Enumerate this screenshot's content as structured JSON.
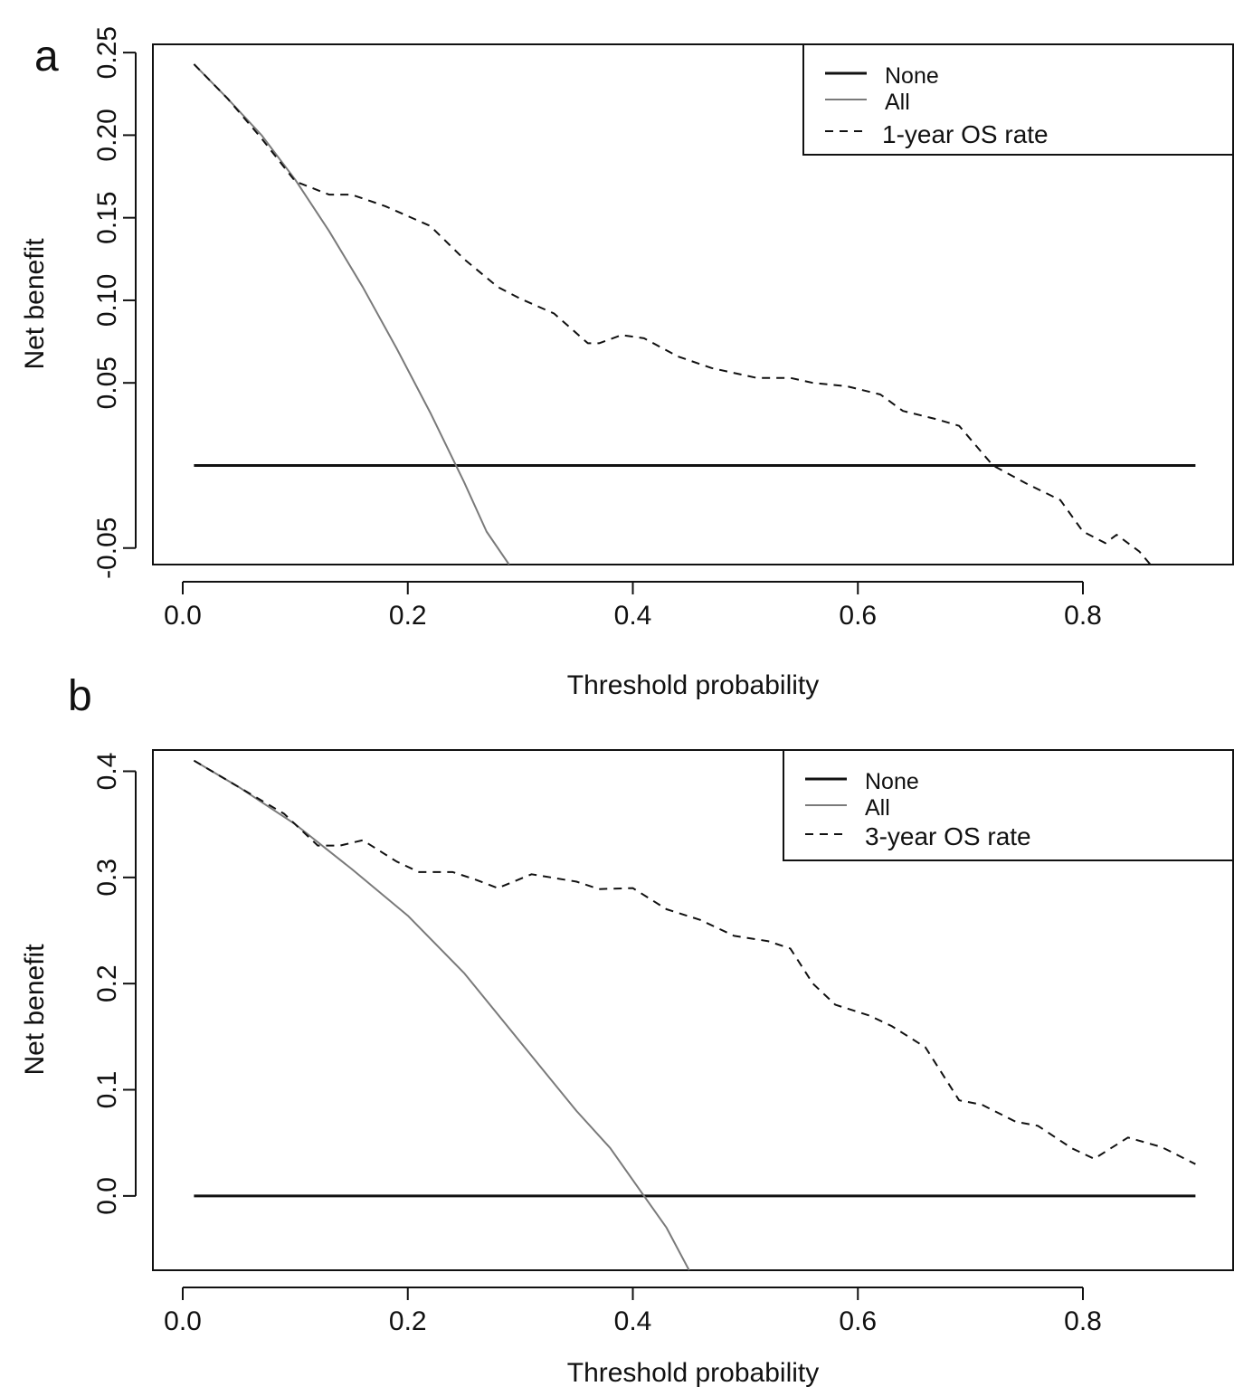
{
  "chart_data": [
    {
      "panel": "a",
      "type": "line",
      "xlabel": "Threshold probability",
      "ylabel": "Net benefit",
      "xlim": [
        0.0,
        0.9
      ],
      "ylim": [
        -0.06,
        0.255
      ],
      "xticks": [
        "0.0",
        "0.2",
        "0.4",
        "0.6",
        "0.8"
      ],
      "yticks": [
        "-0.05",
        "0.05",
        "0.10",
        "0.15",
        "0.20",
        "0.25"
      ],
      "legend_position": "top-right",
      "series": [
        {
          "name": "None",
          "style": "solid",
          "color": "#111111",
          "points": [
            [
              0.01,
              0.0
            ],
            [
              0.9,
              0.0
            ]
          ]
        },
        {
          "name": "All",
          "style": "solid",
          "color": "#7a7a7a",
          "points": [
            [
              0.01,
              0.243
            ],
            [
              0.04,
              0.222
            ],
            [
              0.07,
              0.2
            ],
            [
              0.1,
              0.173
            ],
            [
              0.13,
              0.142
            ],
            [
              0.16,
              0.108
            ],
            [
              0.19,
              0.071
            ],
            [
              0.22,
              0.032
            ],
            [
              0.25,
              -0.01
            ],
            [
              0.27,
              -0.04
            ],
            [
              0.29,
              -0.06
            ]
          ]
        },
        {
          "name": "1-year OS rate",
          "style": "dashed",
          "color": "#111111",
          "points": [
            [
              0.01,
              0.243
            ],
            [
              0.04,
              0.222
            ],
            [
              0.07,
              0.198
            ],
            [
              0.1,
              0.172
            ],
            [
              0.13,
              0.164
            ],
            [
              0.15,
              0.164
            ],
            [
              0.18,
              0.157
            ],
            [
              0.22,
              0.145
            ],
            [
              0.25,
              0.125
            ],
            [
              0.28,
              0.108
            ],
            [
              0.3,
              0.101
            ],
            [
              0.33,
              0.092
            ],
            [
              0.36,
              0.074
            ],
            [
              0.37,
              0.074
            ],
            [
              0.39,
              0.079
            ],
            [
              0.41,
              0.077
            ],
            [
              0.44,
              0.066
            ],
            [
              0.47,
              0.059
            ],
            [
              0.51,
              0.053
            ],
            [
              0.54,
              0.053
            ],
            [
              0.56,
              0.05
            ],
            [
              0.59,
              0.048
            ],
            [
              0.62,
              0.043
            ],
            [
              0.64,
              0.033
            ],
            [
              0.67,
              0.028
            ],
            [
              0.69,
              0.024
            ],
            [
              0.72,
              0.0
            ],
            [
              0.75,
              -0.011
            ],
            [
              0.78,
              -0.021
            ],
            [
              0.8,
              -0.04
            ],
            [
              0.82,
              -0.047
            ],
            [
              0.83,
              -0.042
            ],
            [
              0.85,
              -0.052
            ],
            [
              0.86,
              -0.06
            ]
          ]
        }
      ]
    },
    {
      "panel": "b",
      "type": "line",
      "xlabel": "Threshold probability",
      "ylabel": "Net benefit",
      "xlim": [
        0.0,
        0.9
      ],
      "ylim": [
        -0.07,
        0.42
      ],
      "xticks": [
        "0.0",
        "0.2",
        "0.4",
        "0.6",
        "0.8"
      ],
      "yticks": [
        "0.0",
        "0.1",
        "0.2",
        "0.3",
        "0.4"
      ],
      "legend_position": "top-right",
      "series": [
        {
          "name": "None",
          "style": "solid",
          "color": "#111111",
          "points": [
            [
              0.01,
              0.0
            ],
            [
              0.9,
              0.0
            ]
          ]
        },
        {
          "name": "All",
          "style": "solid",
          "color": "#7a7a7a",
          "points": [
            [
              0.01,
              0.41
            ],
            [
              0.05,
              0.385
            ],
            [
              0.1,
              0.35
            ],
            [
              0.15,
              0.308
            ],
            [
              0.2,
              0.264
            ],
            [
              0.25,
              0.21
            ],
            [
              0.3,
              0.145
            ],
            [
              0.35,
              0.08
            ],
            [
              0.38,
              0.045
            ],
            [
              0.41,
              0.0
            ],
            [
              0.43,
              -0.03
            ],
            [
              0.45,
              -0.07
            ]
          ]
        },
        {
          "name": "3-year OS rate",
          "style": "dashed",
          "color": "#111111",
          "points": [
            [
              0.01,
              0.41
            ],
            [
              0.05,
              0.385
            ],
            [
              0.09,
              0.36
            ],
            [
              0.12,
              0.33
            ],
            [
              0.14,
              0.33
            ],
            [
              0.16,
              0.335
            ],
            [
              0.19,
              0.315
            ],
            [
              0.21,
              0.305
            ],
            [
              0.24,
              0.305
            ],
            [
              0.26,
              0.298
            ],
            [
              0.28,
              0.29
            ],
            [
              0.31,
              0.303
            ],
            [
              0.35,
              0.296
            ],
            [
              0.37,
              0.289
            ],
            [
              0.4,
              0.29
            ],
            [
              0.43,
              0.27
            ],
            [
              0.46,
              0.26
            ],
            [
              0.49,
              0.245
            ],
            [
              0.52,
              0.24
            ],
            [
              0.54,
              0.233
            ],
            [
              0.56,
              0.2
            ],
            [
              0.58,
              0.18
            ],
            [
              0.61,
              0.17
            ],
            [
              0.63,
              0.16
            ],
            [
              0.66,
              0.14
            ],
            [
              0.69,
              0.09
            ],
            [
              0.71,
              0.086
            ],
            [
              0.74,
              0.07
            ],
            [
              0.76,
              0.066
            ],
            [
              0.79,
              0.045
            ],
            [
              0.81,
              0.035
            ],
            [
              0.84,
              0.055
            ],
            [
              0.87,
              0.046
            ],
            [
              0.9,
              0.03
            ]
          ]
        }
      ]
    }
  ]
}
